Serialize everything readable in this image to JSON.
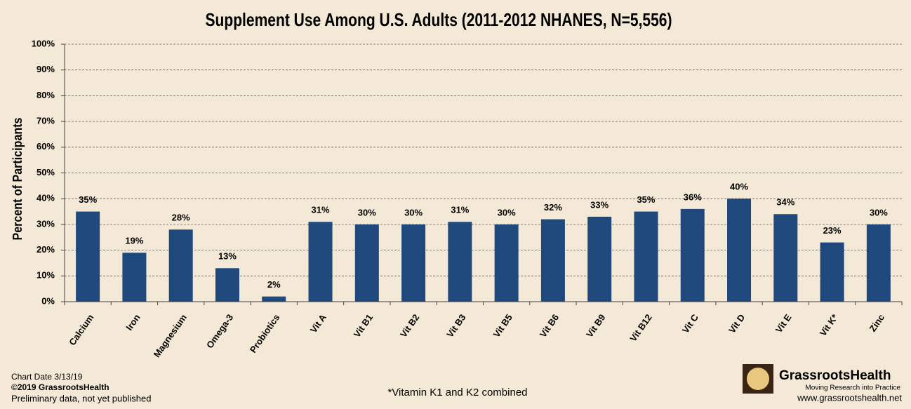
{
  "chart_data": {
    "type": "bar",
    "title": "Supplement Use Among U.S. Adults (2011-2012 NHANES, N=5,556)",
    "y_label": "Percent of Participants",
    "categories": [
      "Calcium",
      "Iron",
      "Magnesium",
      "Omega-3",
      "Probiotics",
      "Vit A",
      "Vit B1",
      "Vit B2",
      "Vit B3",
      "Vit B5",
      "Vit B6",
      "Vit B9",
      "Vit B12",
      "Vit C",
      "Vit D",
      "Vit E",
      "Vit K*",
      "Zinc"
    ],
    "values": [
      35,
      19,
      28,
      13,
      2,
      31,
      30,
      30,
      31,
      30,
      32,
      33,
      35,
      36,
      40,
      34,
      23,
      30
    ],
    "value_labels": [
      "35%",
      "19%",
      "28%",
      "13%",
      "2%",
      "31%",
      "30%",
      "30%",
      "31%",
      "30%",
      "32%",
      "33%",
      "35%",
      "36%",
      "40%",
      "34%",
      "23%",
      "30%"
    ],
    "color": "#1f497d",
    "ylim": [
      0,
      100
    ],
    "yticks": [
      {
        "value": 0,
        "label": "0%"
      },
      {
        "value": 10,
        "label": "10%"
      },
      {
        "value": 20,
        "label": "20%"
      },
      {
        "value": 30,
        "label": "30%"
      },
      {
        "value": 40,
        "label": "40%"
      },
      {
        "value": 50,
        "label": "50%"
      },
      {
        "value": 60,
        "label": "60%"
      },
      {
        "value": 70,
        "label": "70%"
      },
      {
        "value": 80,
        "label": "80%"
      },
      {
        "value": 90,
        "label": "90%"
      },
      {
        "value": 100,
        "label": "100%"
      }
    ],
    "grid": true,
    "footnote": "*Vitamin K1 and K2 combined"
  },
  "footer": {
    "chart_date": "Chart Date 3/13/19",
    "copyright": "©2019 GrassrootsHealth",
    "status": "Preliminary data, not yet published",
    "logo_name": "GrassrootsHealth",
    "logo_tagline": "Moving Research into Practice",
    "website": "www.grassrootshealth.net"
  }
}
